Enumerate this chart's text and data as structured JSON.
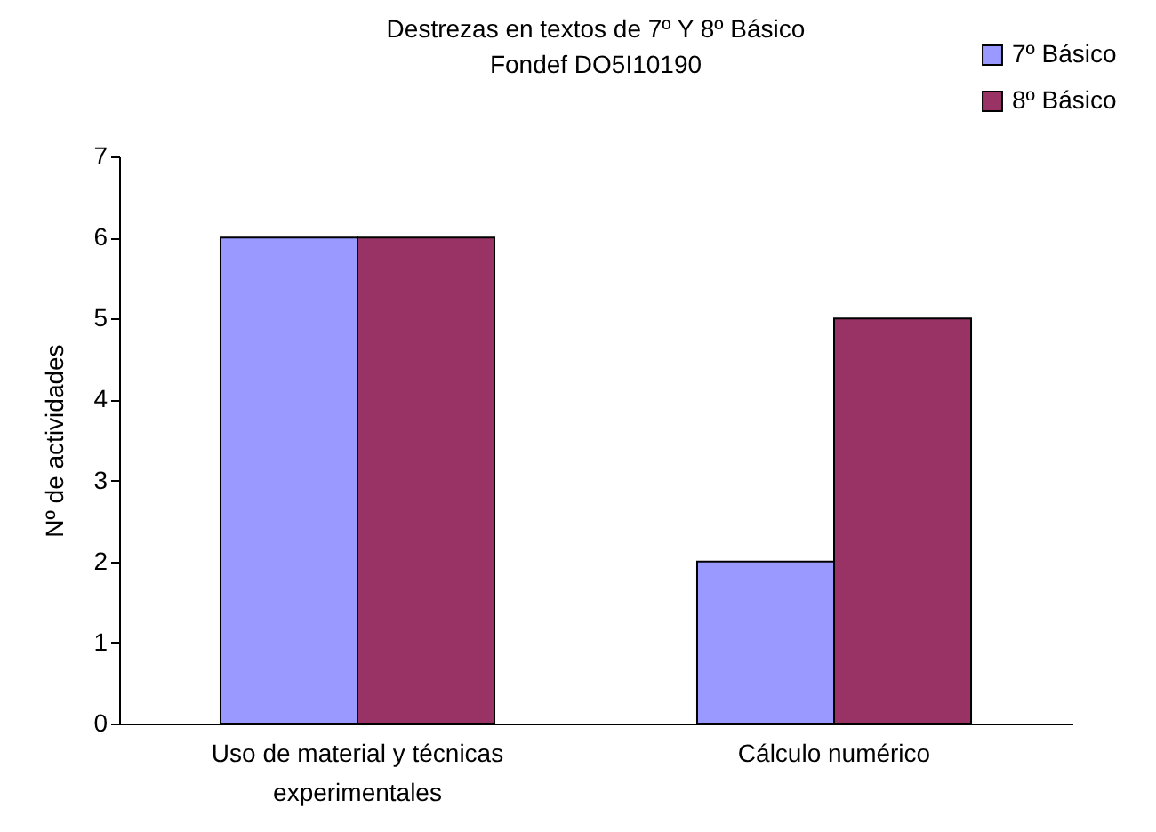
{
  "chart_data": {
    "type": "bar",
    "title": "Destrezas en textos de 7º Y 8º Básico",
    "subtitle": "Fondef DO5I10190",
    "ylabel": "Nº de actividades",
    "categories": [
      "Uso de material y técnicas experimentales",
      "Cálculo numérico"
    ],
    "series": [
      {
        "name": "7º Básico",
        "color": "#9999ff",
        "values": [
          6,
          2
        ]
      },
      {
        "name": "8º Básico",
        "color": "#993366",
        "values": [
          6,
          5
        ]
      }
    ],
    "ylim": [
      0,
      7
    ],
    "yticks": [
      0,
      1,
      2,
      3,
      4,
      5,
      6,
      7
    ],
    "grid": false,
    "legend": "top right"
  }
}
